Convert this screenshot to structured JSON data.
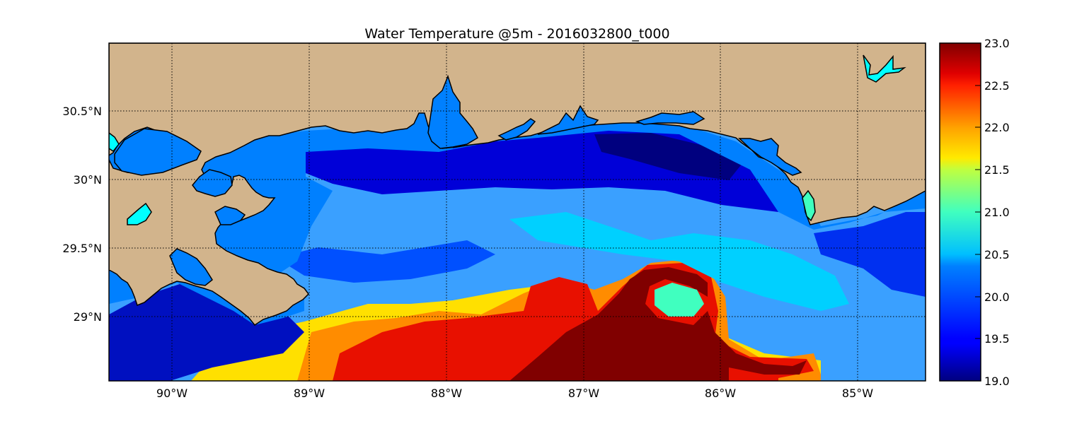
{
  "title": "Water Temperature @5m - 2016032800_t000",
  "map": {
    "lon_range": [
      -90.5,
      -84.5
    ],
    "lat_range": [
      28.55,
      31.0
    ],
    "lon_ticks": [
      {
        "value": -90,
        "label": "90°W"
      },
      {
        "value": -89,
        "label": "89°W"
      },
      {
        "value": -88,
        "label": "88°W"
      },
      {
        "value": -87,
        "label": "87°W"
      },
      {
        "value": -86,
        "label": "86°W"
      },
      {
        "value": -85,
        "label": "85°W"
      }
    ],
    "lat_ticks": [
      {
        "value": 30.5,
        "label": "30.5°N"
      },
      {
        "value": 30.0,
        "label": "30°N"
      },
      {
        "value": 29.5,
        "label": "29.5°N"
      },
      {
        "value": 29.0,
        "label": "29°N"
      }
    ],
    "land_color": "#d2b48c",
    "masked_water_color": "#0080ff",
    "grid": "dotted"
  },
  "colorbar": {
    "min": 19.0,
    "max": 23.0,
    "colormap": "jet",
    "ticks": [
      "19.0",
      "19.5",
      "20.0",
      "20.5",
      "21.0",
      "21.5",
      "22.0",
      "22.5",
      "23.0"
    ]
  }
}
